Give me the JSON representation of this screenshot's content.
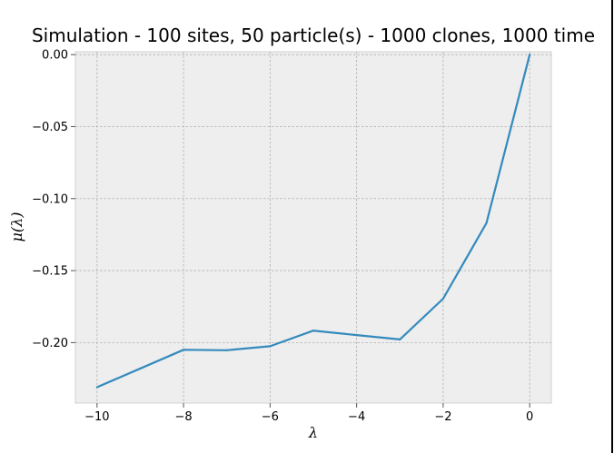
{
  "chart_data": {
    "type": "line",
    "title": "Simulation - 100 sites, 50 particle(s) - 1000 clones, 1000 time",
    "xlabel": "λ",
    "ylabel": "μ(λ)",
    "xlim": [
      -10.5,
      0.5
    ],
    "ylim": [
      -0.242,
      0.002
    ],
    "grid": true,
    "xticks": [
      -10,
      -8,
      -6,
      -4,
      -2,
      0
    ],
    "xtick_labels": [
      "−10",
      "−8",
      "−6",
      "−4",
      "−2",
      "0"
    ],
    "yticks": [
      0.0,
      -0.05,
      -0.1,
      -0.15,
      -0.2
    ],
    "ytick_labels": [
      "0.00",
      "−0.05",
      "−0.10",
      "−0.15",
      "−0.20"
    ],
    "series": [
      {
        "name": "mu",
        "color": "#348abd",
        "x": [
          -10,
          -9,
          -8,
          -7,
          -6,
          -5,
          -4,
          -3,
          -2,
          -1,
          0
        ],
        "y": [
          -0.231,
          -0.218,
          -0.205,
          -0.2053,
          -0.2025,
          -0.1917,
          -0.1948,
          -0.1978,
          -0.1695,
          -0.117,
          0.0
        ]
      }
    ]
  }
}
